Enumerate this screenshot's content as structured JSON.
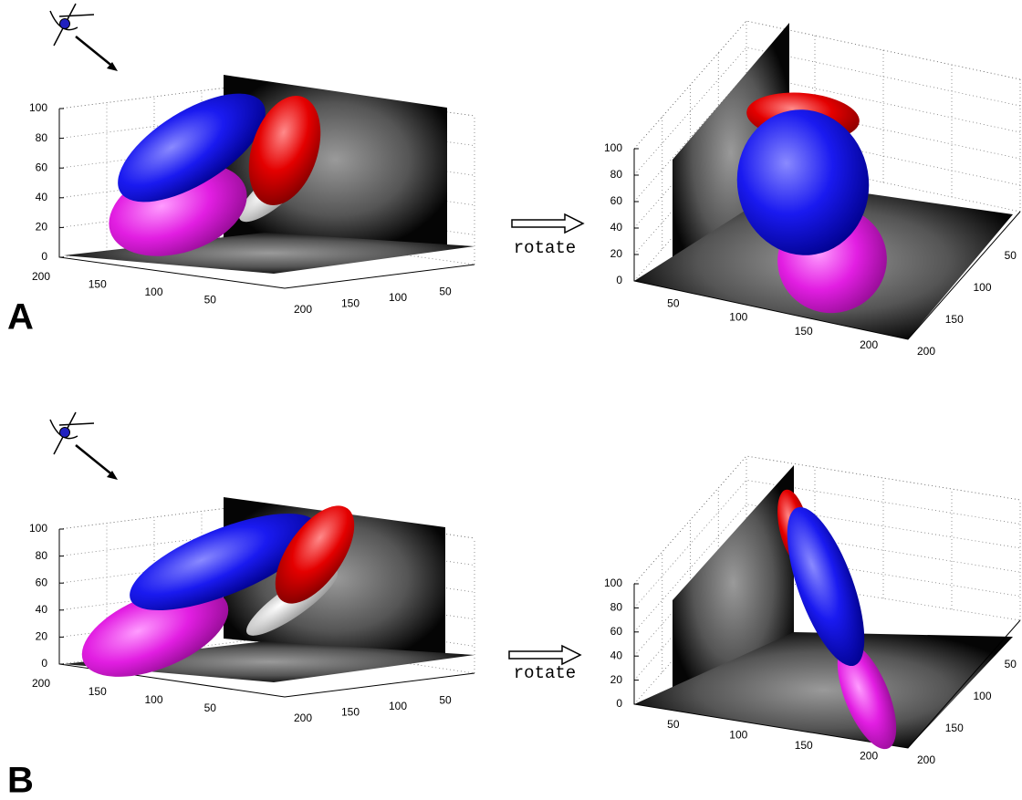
{
  "panels": [
    {
      "label": "A",
      "rotate_label": "rotate",
      "left": {
        "z_ticks": [
          0,
          20,
          40,
          60,
          80,
          100
        ],
        "x_ticks": [
          200,
          150,
          100,
          50
        ],
        "y_ticks": [
          200,
          150,
          100,
          50
        ]
      },
      "right": {
        "z_ticks": [
          0,
          20,
          40,
          60,
          80,
          100
        ],
        "x_ticks": [
          50,
          100,
          150,
          200
        ],
        "y_ticks": [
          200,
          150,
          100,
          50
        ]
      }
    },
    {
      "label": "B",
      "rotate_label": "rotate",
      "left": {
        "z_ticks": [
          0,
          20,
          40,
          60,
          80,
          100
        ],
        "x_ticks": [
          200,
          150,
          100,
          50
        ],
        "y_ticks": [
          200,
          150,
          100,
          50
        ]
      },
      "right": {
        "z_ticks": [
          0,
          20,
          40,
          60,
          80,
          100
        ],
        "x_ticks": [
          50,
          100,
          150,
          200
        ],
        "y_ticks": [
          200,
          150,
          100,
          50
        ]
      }
    }
  ]
}
